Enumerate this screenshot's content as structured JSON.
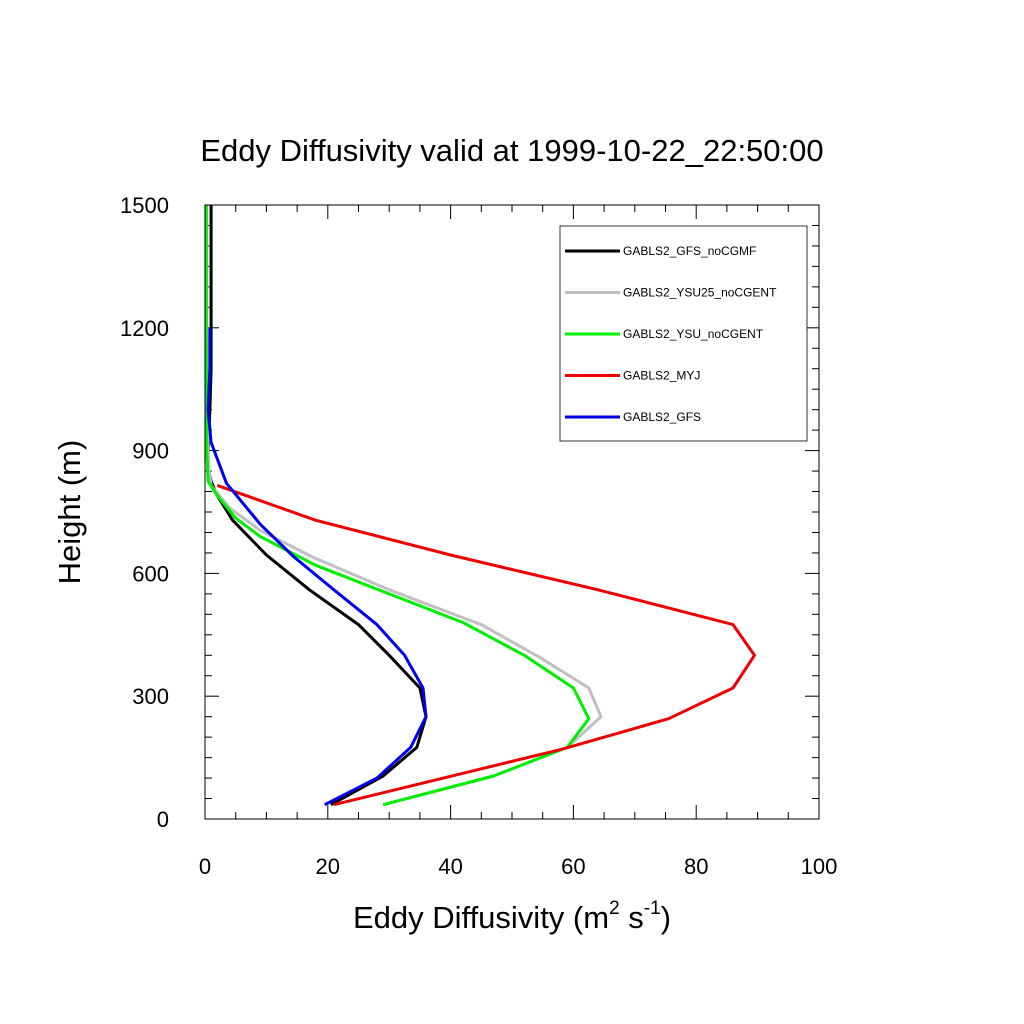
{
  "chart_data": {
    "type": "line",
    "title": "Eddy Diffusivity valid at 1999-10-22_22:50:00",
    "xlabel": "Eddy Diffusivity (m",
    "xlabel_sup1": "2",
    "xlabel_mid": " s",
    "xlabel_sup2": "-1",
    "xlabel_end": ")",
    "ylabel": "Height (m)",
    "xlim": [
      0,
      100
    ],
    "ylim": [
      0,
      1500
    ],
    "x_ticks": [
      0,
      20,
      40,
      60,
      80,
      100
    ],
    "y_ticks": [
      0,
      300,
      600,
      900,
      1200,
      1500
    ],
    "x_ticks_labels": [
      "0",
      "20",
      "40",
      "60",
      "80",
      "100"
    ],
    "y_ticks_labels": [
      "0",
      "300",
      "600",
      "900",
      "1200",
      "1500"
    ],
    "grid": false,
    "legend_position": "top-right",
    "series": [
      {
        "name": "GABLS2_GFS_noCGMF",
        "color": "#000000",
        "points": [
          [
            20.5,
            35
          ],
          [
            29,
            105
          ],
          [
            34.5,
            175
          ],
          [
            36,
            250
          ],
          [
            35,
            320
          ],
          [
            30,
            400
          ],
          [
            25,
            475
          ],
          [
            17,
            560
          ],
          [
            10,
            645
          ],
          [
            4.5,
            730
          ],
          [
            2,
            790
          ],
          [
            1,
            825
          ],
          [
            0.5,
            860
          ],
          [
            0.5,
            900
          ],
          [
            0.8,
            1000
          ],
          [
            1,
            1100
          ],
          [
            1,
            1300
          ],
          [
            1,
            1500
          ]
        ]
      },
      {
        "name": "GABLS2_YSU25_noCGENT",
        "color": "#c0c0c0",
        "points": [
          [
            29,
            35
          ],
          [
            47,
            105
          ],
          [
            59,
            175
          ],
          [
            64.5,
            250
          ],
          [
            62.5,
            320
          ],
          [
            54.5,
            395
          ],
          [
            45,
            475
          ],
          [
            30,
            560
          ],
          [
            17.5,
            640
          ],
          [
            9,
            705
          ],
          [
            4,
            760
          ],
          [
            1,
            815
          ],
          [
            0.5,
            870
          ],
          [
            0.4,
            1000
          ],
          [
            0.3,
            1200
          ],
          [
            0.3,
            1500
          ]
        ]
      },
      {
        "name": "GABLS2_YSU_noCGENT",
        "color": "#00ee00",
        "points": [
          [
            29,
            35
          ],
          [
            47,
            105
          ],
          [
            59,
            175
          ],
          [
            62.5,
            245
          ],
          [
            60,
            320
          ],
          [
            52,
            400
          ],
          [
            42,
            480
          ],
          [
            30,
            550
          ],
          [
            18,
            620
          ],
          [
            9,
            690
          ],
          [
            5,
            735
          ],
          [
            2,
            790
          ],
          [
            0.5,
            825
          ],
          [
            0.3,
            900
          ],
          [
            0.2,
            1200
          ],
          [
            0.2,
            1500
          ]
        ]
      },
      {
        "name": "GABLS2_MYJ",
        "color": "#ee0000",
        "points": [
          [
            21,
            35
          ],
          [
            58,
            170
          ],
          [
            75.5,
            245
          ],
          [
            86,
            320
          ],
          [
            89.5,
            400
          ],
          [
            86,
            475
          ],
          [
            64,
            560
          ],
          [
            40,
            645
          ],
          [
            18,
            730
          ],
          [
            2,
            815
          ]
        ]
      },
      {
        "name": "GABLS2_GFS",
        "color": "#0000ee",
        "points": [
          [
            19.5,
            35
          ],
          [
            28,
            100
          ],
          [
            33.5,
            175
          ],
          [
            36,
            250
          ],
          [
            35.5,
            320
          ],
          [
            32.5,
            400
          ],
          [
            28,
            475
          ],
          [
            21,
            560
          ],
          [
            14.5,
            640
          ],
          [
            9,
            720
          ],
          [
            3.5,
            820
          ],
          [
            1,
            920
          ],
          [
            0.5,
            1000
          ],
          [
            0.8,
            1100
          ],
          [
            0.8,
            1200
          ]
        ]
      }
    ]
  }
}
